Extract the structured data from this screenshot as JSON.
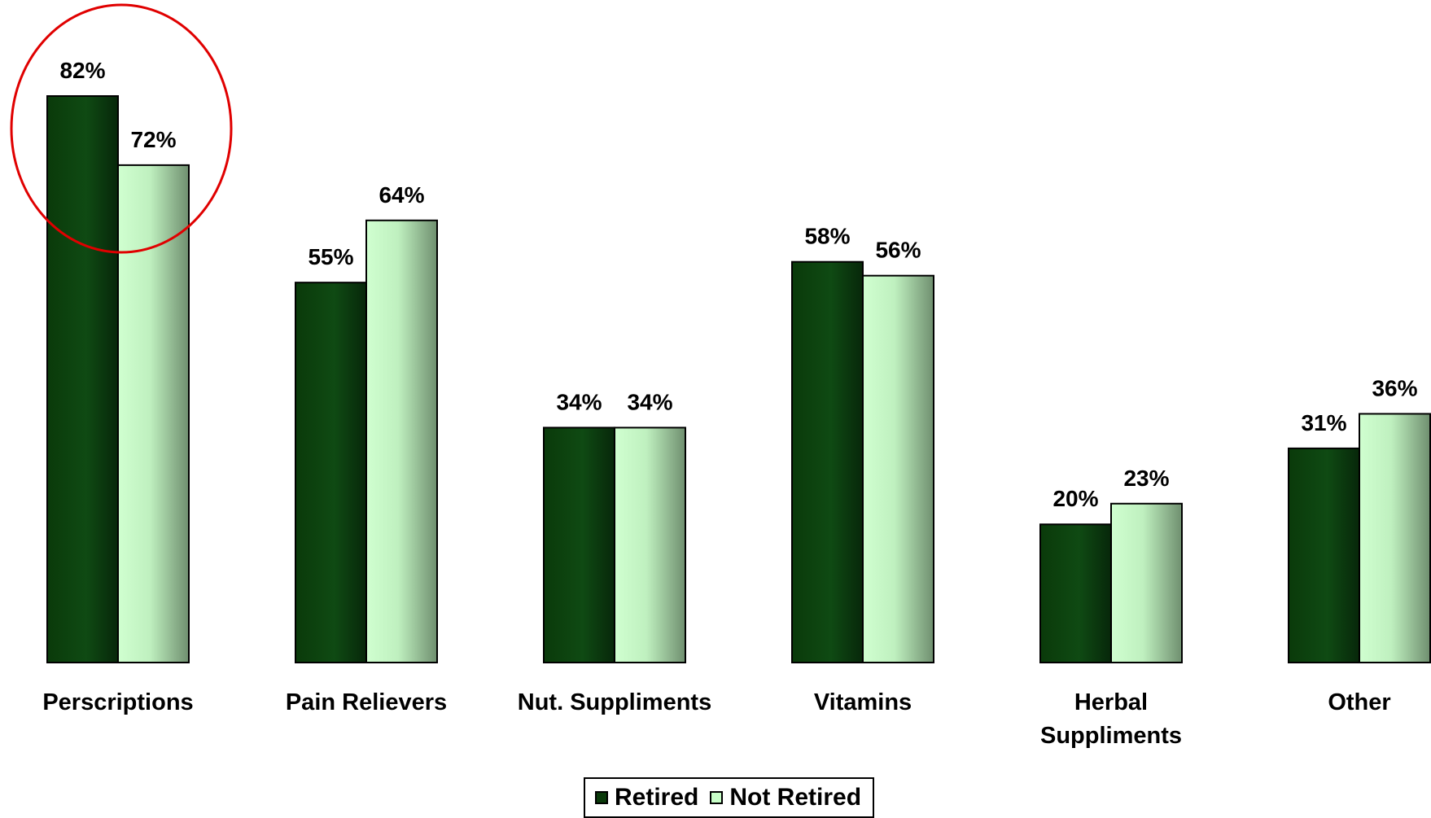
{
  "chart_data": {
    "type": "bar",
    "categories": [
      [
        "Perscriptions"
      ],
      [
        "Pain Relievers"
      ],
      [
        "Nut. Suppliments"
      ],
      [
        "Vitamins"
      ],
      [
        "Herbal",
        "Suppliments"
      ],
      [
        "Other"
      ]
    ],
    "series": [
      {
        "name": "Retired",
        "values": [
          82,
          55,
          34,
          58,
          20,
          31
        ],
        "labels": [
          "82%",
          "55%",
          "34%",
          "58%",
          "20%",
          "31%"
        ],
        "color": "#0a3a0a"
      },
      {
        "name": "Not Retired",
        "values": [
          72,
          64,
          34,
          56,
          23,
          36
        ],
        "labels": [
          "72%",
          "64%",
          "34%",
          "56%",
          "23%",
          "36%"
        ],
        "color": "#c8ffc8"
      }
    ],
    "ylim": [
      0,
      100
    ],
    "grid": false,
    "legend_position": "bottom-center",
    "annotation": {
      "shape": "circle",
      "color": "#e00000",
      "target_category": "Perscriptions"
    }
  },
  "legend": {
    "retired_label": "Retired",
    "not_retired_label": "Not Retired"
  }
}
